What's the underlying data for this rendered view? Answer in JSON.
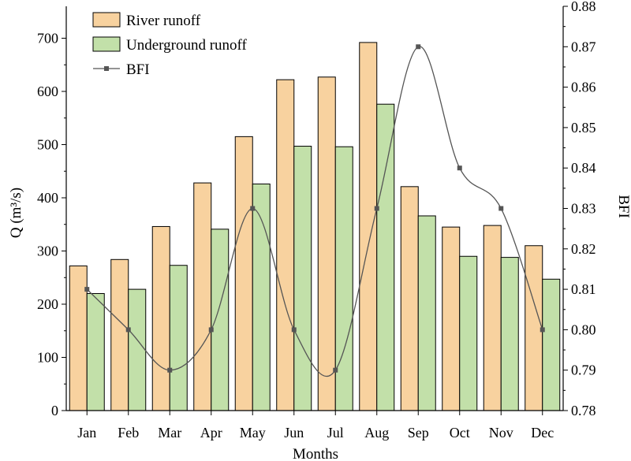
{
  "chart_data": {
    "type": "bar",
    "categories": [
      "Jan",
      "Feb",
      "Mar",
      "Apr",
      "May",
      "Jun",
      "Jul",
      "Aug",
      "Sep",
      "Oct",
      "Nov",
      "Dec"
    ],
    "xlabel": "Months",
    "ylabel": "Q (m³/s)",
    "y2label": "BFI",
    "ylim": [
      0,
      760
    ],
    "y_ticks": [
      0,
      100,
      200,
      300,
      400,
      500,
      600,
      700
    ],
    "y2lim": [
      0.78,
      0.88
    ],
    "y2_ticks": [
      "0.78",
      "0.79",
      "0.80",
      "0.81",
      "0.82",
      "0.83",
      "0.84",
      "0.85",
      "0.86",
      "0.87",
      "0.88"
    ],
    "grid": false,
    "legend": "top-left",
    "series": [
      {
        "name": "River runoff",
        "type": "bar",
        "axis": "left",
        "color": "#f8d29f",
        "values": [
          272,
          284,
          346,
          428,
          515,
          622,
          627,
          692,
          421,
          345,
          348,
          310
        ]
      },
      {
        "name": "Underground runoff",
        "type": "bar",
        "axis": "left",
        "color": "#c2e0a9",
        "values": [
          220,
          228,
          273,
          341,
          426,
          497,
          496,
          576,
          366,
          290,
          288,
          247
        ]
      },
      {
        "name": "BFI",
        "type": "line",
        "axis": "right",
        "color": "#555555",
        "values": [
          0.81,
          0.8,
          0.79,
          0.8,
          0.83,
          0.8,
          0.79,
          0.83,
          0.87,
          0.84,
          0.83,
          0.8
        ]
      }
    ]
  }
}
